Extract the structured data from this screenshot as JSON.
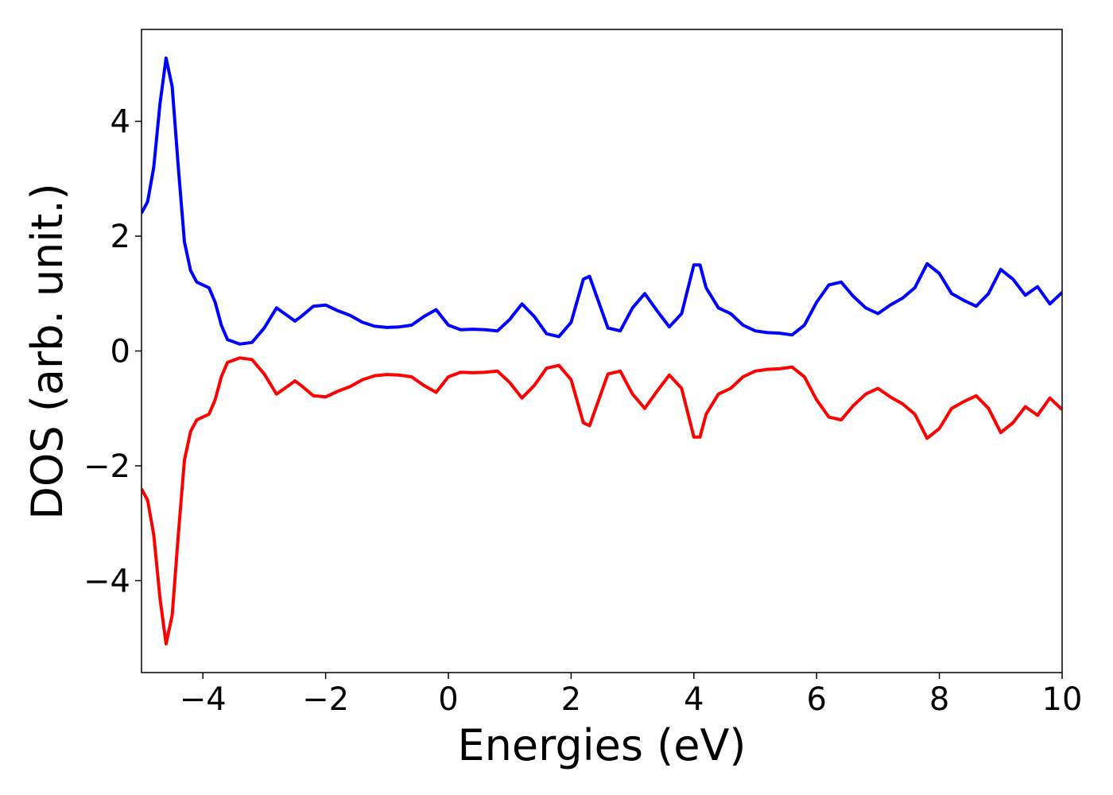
{
  "chart_data": {
    "type": "line",
    "x_label": "Energies (eV)",
    "y_label": "DOS (arb. unit.)",
    "x": [
      -5.0,
      -4.9,
      -4.8,
      -4.7,
      -4.6,
      -4.5,
      -4.4,
      -4.3,
      -4.2,
      -4.1,
      -4.0,
      -3.9,
      -3.8,
      -3.7,
      -3.6,
      -3.4,
      -3.2,
      -3.0,
      -2.8,
      -2.6,
      -2.5,
      -2.4,
      -2.2,
      -2.0,
      -1.8,
      -1.6,
      -1.4,
      -1.2,
      -1.0,
      -0.8,
      -0.6,
      -0.4,
      -0.2,
      0.0,
      0.2,
      0.4,
      0.6,
      0.8,
      1.0,
      1.2,
      1.4,
      1.6,
      1.8,
      2.0,
      2.2,
      2.3,
      2.4,
      2.6,
      2.8,
      3.0,
      3.2,
      3.4,
      3.6,
      3.8,
      4.0,
      4.1,
      4.2,
      4.4,
      4.6,
      4.8,
      5.0,
      5.2,
      5.4,
      5.6,
      5.8,
      6.0,
      6.2,
      6.4,
      6.6,
      6.8,
      7.0,
      7.2,
      7.4,
      7.6,
      7.8,
      8.0,
      8.2,
      8.4,
      8.6,
      8.8,
      9.0,
      9.2,
      9.4,
      9.6,
      9.8,
      10.0
    ],
    "series": [
      {
        "color": "#0000ff",
        "values": [
          2.4,
          2.6,
          3.2,
          4.3,
          5.1,
          4.6,
          3.2,
          1.9,
          1.4,
          1.2,
          1.15,
          1.1,
          0.85,
          0.45,
          0.2,
          0.12,
          0.15,
          0.4,
          0.75,
          0.6,
          0.52,
          0.6,
          0.78,
          0.8,
          0.7,
          0.62,
          0.5,
          0.43,
          0.41,
          0.42,
          0.45,
          0.6,
          0.72,
          0.45,
          0.37,
          0.38,
          0.37,
          0.35,
          0.55,
          0.82,
          0.6,
          0.3,
          0.25,
          0.5,
          1.25,
          1.3,
          1.0,
          0.4,
          0.35,
          0.75,
          1.0,
          0.7,
          0.42,
          0.65,
          1.5,
          1.5,
          1.1,
          0.75,
          0.65,
          0.45,
          0.35,
          0.32,
          0.31,
          0.28,
          0.45,
          0.85,
          1.15,
          1.2,
          0.95,
          0.75,
          0.65,
          0.8,
          0.92,
          1.1,
          1.52,
          1.35,
          1.0,
          0.88,
          0.78,
          1.0,
          1.42,
          1.25,
          0.97,
          1.12,
          0.82,
          1.02
        ]
      },
      {
        "color": "#ff0000",
        "values": [
          -2.4,
          -2.6,
          -3.2,
          -4.3,
          -5.1,
          -4.6,
          -3.2,
          -1.9,
          -1.4,
          -1.2,
          -1.15,
          -1.1,
          -0.85,
          -0.45,
          -0.2,
          -0.12,
          -0.15,
          -0.4,
          -0.75,
          -0.6,
          -0.52,
          -0.6,
          -0.78,
          -0.8,
          -0.7,
          -0.62,
          -0.5,
          -0.43,
          -0.41,
          -0.42,
          -0.45,
          -0.6,
          -0.72,
          -0.45,
          -0.37,
          -0.38,
          -0.37,
          -0.35,
          -0.55,
          -0.82,
          -0.6,
          -0.3,
          -0.25,
          -0.5,
          -1.25,
          -1.3,
          -1.0,
          -0.4,
          -0.35,
          -0.75,
          -1.0,
          -0.7,
          -0.42,
          -0.65,
          -1.5,
          -1.5,
          -1.1,
          -0.75,
          -0.65,
          -0.45,
          -0.35,
          -0.32,
          -0.31,
          -0.28,
          -0.45,
          -0.85,
          -1.15,
          -1.2,
          -0.95,
          -0.75,
          -0.65,
          -0.8,
          -0.92,
          -1.1,
          -1.52,
          -1.35,
          -1.0,
          -0.88,
          -0.78,
          -1.0,
          -1.42,
          -1.25,
          -0.97,
          -1.12,
          -0.82,
          -1.02
        ]
      }
    ],
    "xlim": [
      -5,
      10
    ],
    "xticks": [
      {
        "value": -4,
        "label": "−4"
      },
      {
        "value": -2,
        "label": "−2"
      },
      0,
      2,
      4,
      6,
      8,
      10
    ],
    "ylim": [
      -5.6,
      5.6
    ],
    "yticks": [
      {
        "value": -4,
        "label": "−4"
      },
      {
        "value": -2,
        "label": "−2"
      },
      0,
      2,
      4
    ]
  }
}
